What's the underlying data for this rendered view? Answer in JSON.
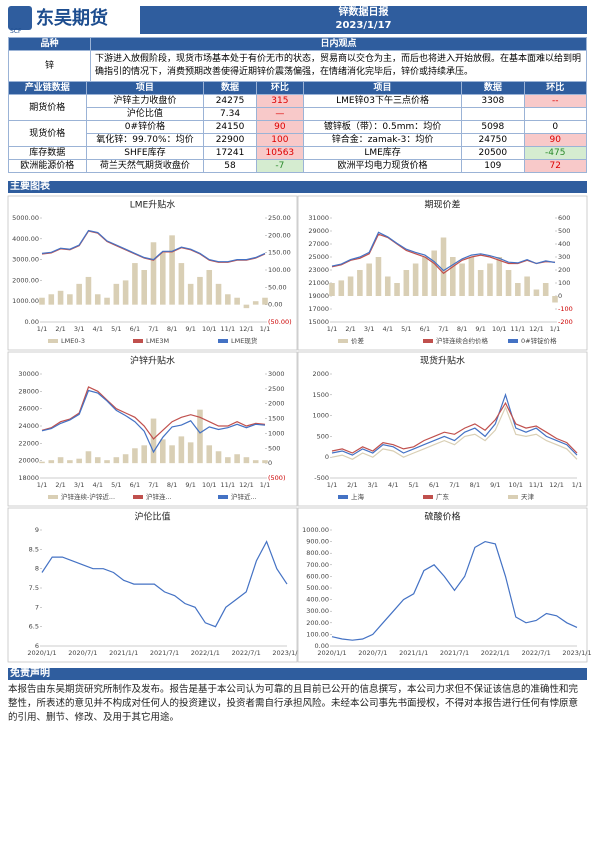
{
  "header": {
    "logo": "东吴期货",
    "logo_sub": "SCF",
    "title": "锌数据日报",
    "date": "2023/1/17"
  },
  "view": {
    "headers": [
      "品种",
      "日内观点"
    ],
    "variety": "锌",
    "text": "下游进入放假阶段，现货市场基本处于有价无市的状态，贸易商以交仓为主，而后也将进入开始放假。在基本面难以给到明确指引的情况下，消费预期改善使得近期锌价震荡偏强，在情绪消化完毕后，锌价或持续承压。"
  },
  "table": {
    "headers": [
      "产业链数据",
      "项目",
      "数据",
      "环比",
      "项目",
      "数据",
      "环比"
    ],
    "groups": [
      {
        "category": "期货价格",
        "rows": [
          [
            "沪锌主力收盘价",
            24275,
            {
              "value": 315,
              "tone": "up"
            },
            "LME锌03下午三点价格",
            3308,
            {
              "value": "--",
              "tone": "up"
            }
          ],
          [
            "沪伦比值",
            7.34,
            {
              "value": "—",
              "tone": "up"
            }
          ]
        ]
      },
      {
        "category": "现货价格",
        "rows": [
          [
            "0#锌价格",
            24150,
            {
              "value": 90,
              "tone": "up"
            },
            "镀锌板（带）：0.5mm：均价",
            5098,
            {
              "value": 0
            }
          ],
          [
            "氧化锌：99.70%：均价",
            22900,
            {
              "value": 100,
              "tone": "up"
            },
            "锌合金：zamak-3：均价",
            24750,
            {
              "value": 90,
              "tone": "up"
            }
          ]
        ]
      },
      {
        "category": "库存数据",
        "rows": [
          [
            "SHFE库存",
            17241,
            {
              "value": 10563,
              "tone": "up"
            },
            "LME库存",
            20500,
            {
              "value": -475,
              "tone": "down"
            }
          ]
        ]
      },
      {
        "category": "欧洲能源价格",
        "rows": [
          [
            "荷兰天然气期货收盘价",
            58,
            {
              "value": -7,
              "tone": "down"
            },
            "欧洲平均电力现货价格",
            109,
            {
              "value": 72,
              "tone": "up"
            }
          ]
        ]
      }
    ]
  },
  "charts_heading": "主要图表",
  "charts": [
    {
      "title": "LME升贴水",
      "categories": [
        "1/1",
        null,
        "2/1",
        null,
        "3/1",
        null,
        "4/1",
        null,
        "5/1",
        null,
        "6/1",
        null,
        "7/1",
        null,
        "8/1",
        null,
        "9/1",
        null,
        "10/1",
        null,
        "11/1",
        null,
        "12/1",
        null,
        "1/1"
      ],
      "ylim": [
        0,
        5000
      ],
      "yticks": [
        {
          "value": 0,
          "label": "0.00"
        },
        {
          "value": 1000,
          "label": "1000.00"
        },
        {
          "value": 2000,
          "label": "2000.00"
        },
        {
          "value": 3000,
          "label": "3000.00"
        },
        {
          "value": 4000,
          "label": "4000.00"
        },
        {
          "value": 5000,
          "label": "5000.00"
        }
      ],
      "y2lim": [
        -50,
        250
      ],
      "y2ticks": [
        {
          "value": -50,
          "label": "(50.00)"
        },
        {
          "value": 0,
          "label": "0.00"
        },
        {
          "value": 50,
          "label": "50.00"
        },
        {
          "value": 100,
          "label": "100.00"
        },
        {
          "value": 150,
          "label": "150.00"
        },
        {
          "value": 200,
          "label": "200.00"
        },
        {
          "value": 250,
          "label": "250.00"
        }
      ],
      "series": [
        {
          "name": "LME0-3",
          "type": "bar",
          "axis": "y2",
          "color": "#d9cfb5",
          "values": [
            20,
            30,
            40,
            30,
            60,
            80,
            30,
            20,
            60,
            70,
            120,
            100,
            180,
            150,
            200,
            120,
            60,
            80,
            100,
            60,
            30,
            20,
            -10,
            10,
            20
          ]
        },
        {
          "name": "LME3M",
          "type": "line",
          "color": "#c0504d",
          "values": [
            3270,
            3320,
            3520,
            3470,
            3670,
            4370,
            4270,
            3870,
            3670,
            3470,
            3270,
            3070,
            2970,
            3370,
            3370,
            3570,
            3470,
            3270,
            2970,
            2870,
            2870,
            2970,
            2970,
            3070,
            3270
          ]
        },
        {
          "name": "LME现货",
          "type": "line",
          "color": "#4472c4",
          "values": [
            3300,
            3350,
            3550,
            3500,
            3700,
            4400,
            4300,
            3900,
            3700,
            3500,
            3300,
            3100,
            3000,
            3400,
            3400,
            3600,
            3500,
            3300,
            3000,
            2900,
            2900,
            3000,
            3000,
            3100,
            3300
          ]
        }
      ]
    },
    {
      "title": "期现价差",
      "categories": [
        "1/1",
        null,
        "2/1",
        null,
        "3/1",
        null,
        "4/1",
        null,
        "5/1",
        null,
        "6/1",
        null,
        "7/1",
        null,
        "8/1",
        null,
        "9/1",
        null,
        "10/1",
        null,
        "11/1",
        null,
        "12/1",
        null,
        "1/1"
      ],
      "ylim": [
        15000,
        31000
      ],
      "yticks": [
        15000,
        17000,
        19000,
        21000,
        23000,
        25000,
        27000,
        29000,
        31000
      ],
      "y2lim": [
        -200,
        600
      ],
      "y2ticks": [
        -200,
        -100,
        0,
        100,
        200,
        300,
        400,
        500,
        600
      ],
      "series": [
        {
          "name": "价差",
          "type": "bar",
          "axis": "y2",
          "color": "#d9cfb5",
          "values": [
            100,
            120,
            150,
            200,
            250,
            300,
            150,
            100,
            200,
            250,
            300,
            350,
            450,
            300,
            250,
            300,
            200,
            250,
            300,
            200,
            100,
            150,
            50,
            100,
            -50
          ]
        },
        {
          "name": "沪锌连续合约价格",
          "type": "line",
          "color": "#c0504d",
          "values": [
            23500,
            23800,
            24500,
            24800,
            25500,
            28500,
            28000,
            27000,
            26000,
            25500,
            25000,
            24000,
            22500,
            23500,
            24500,
            25000,
            25300,
            25000,
            24500,
            24000,
            24000,
            24500,
            24000,
            24300,
            24200
          ]
        },
        {
          "name": "0#锌锭价格",
          "type": "line",
          "color": "#4472c4",
          "values": [
            23600,
            23900,
            24600,
            25000,
            25700,
            28800,
            28100,
            27100,
            26200,
            25700,
            25300,
            24300,
            22900,
            23800,
            24700,
            25300,
            25500,
            25200,
            24800,
            24200,
            24100,
            24600,
            24000,
            24400,
            24150
          ]
        }
      ]
    },
    {
      "title": "沪锌升贴水",
      "categories": [
        "1/1",
        null,
        "2/1",
        null,
        "3/1",
        null,
        "4/1",
        null,
        "5/1",
        null,
        "6/1",
        null,
        "7/1",
        null,
        "8/1",
        null,
        "9/1",
        null,
        "10/1",
        null,
        "11/1",
        null,
        "12/1",
        null,
        "1/1"
      ],
      "ylim": [
        18000,
        30000
      ],
      "yticks": [
        18000,
        20000,
        22000,
        24000,
        26000,
        28000,
        30000
      ],
      "y2lim": [
        -500,
        3000
      ],
      "y2ticks": [
        {
          "value": -500,
          "label": "(500)"
        },
        0,
        500,
        1000,
        1500,
        2000,
        2500,
        3000
      ],
      "series": [
        {
          "name": "沪锌连续-沪锌近...",
          "type": "bar",
          "axis": "y2",
          "color": "#d9cfb5",
          "values": [
            50,
            100,
            200,
            100,
            150,
            400,
            200,
            100,
            200,
            300,
            500,
            600,
            1500,
            800,
            600,
            900,
            700,
            1800,
            600,
            400,
            200,
            300,
            200,
            100,
            100
          ]
        },
        {
          "name": "沪锌连...",
          "type": "line",
          "color": "#c0504d",
          "values": [
            23500,
            23800,
            24500,
            24800,
            25500,
            28500,
            28000,
            27000,
            26000,
            25500,
            25000,
            24000,
            22500,
            23500,
            24500,
            25000,
            25300,
            25000,
            24500,
            24000,
            24000,
            24500,
            24000,
            24300,
            24200
          ]
        },
        {
          "name": "沪锌近...",
          "type": "line",
          "color": "#4472c4",
          "values": [
            23450,
            23700,
            24300,
            24700,
            25350,
            28100,
            27800,
            26900,
            25800,
            25200,
            24500,
            23400,
            21000,
            22700,
            23900,
            24100,
            24600,
            23200,
            23900,
            23600,
            23800,
            24200,
            23800,
            24200,
            24100
          ]
        }
      ]
    },
    {
      "title": "现货升贴水",
      "categories": [
        "1/1",
        null,
        "2/1",
        null,
        "3/1",
        null,
        "4/1",
        null,
        "5/1",
        null,
        "6/1",
        null,
        "7/1",
        null,
        "8/1",
        null,
        "9/1",
        null,
        "10/1",
        null,
        "11/1",
        null,
        "12/1",
        null,
        "1/1"
      ],
      "ylim": [
        -500,
        2000
      ],
      "yticks": [
        -500,
        0,
        500,
        1000,
        1500,
        2000
      ],
      "series": [
        {
          "name": "上海",
          "type": "line",
          "color": "#4472c4",
          "values": [
            100,
            150,
            50,
            200,
            100,
            300,
            250,
            100,
            200,
            300,
            400,
            500,
            400,
            600,
            700,
            500,
            800,
            1500,
            700,
            600,
            700,
            500,
            400,
            300,
            50
          ]
        },
        {
          "name": "广东",
          "type": "line",
          "color": "#c0504d",
          "values": [
            150,
            200,
            100,
            250,
            150,
            350,
            300,
            200,
            250,
            400,
            500,
            600,
            550,
            700,
            800,
            650,
            900,
            1300,
            800,
            700,
            750,
            600,
            450,
            350,
            100
          ]
        },
        {
          "name": "天津",
          "type": "line",
          "color": "#d9cfb5",
          "values": [
            0,
            50,
            -50,
            100,
            0,
            200,
            150,
            0,
            100,
            200,
            300,
            400,
            300,
            500,
            550,
            400,
            650,
            1200,
            550,
            500,
            550,
            400,
            300,
            200,
            -50
          ]
        }
      ]
    },
    {
      "title": "沪伦比值",
      "categories": [
        "2020/1/1",
        null,
        null,
        null,
        "2020/7/1",
        null,
        null,
        null,
        "2021/1/1",
        null,
        null,
        null,
        "2021/7/1",
        null,
        null,
        null,
        "2022/1/1",
        null,
        null,
        null,
        "2022/7/1",
        null,
        null,
        null,
        "2023/1/1"
      ],
      "ylim": [
        6,
        9
      ],
      "yticks": [
        6,
        6.5,
        7,
        7.5,
        8,
        8.5,
        9
      ],
      "series": [
        {
          "name": "沪伦比值",
          "type": "line",
          "color": "#4472c4",
          "values": [
            7.9,
            8.3,
            8.3,
            8.2,
            8.1,
            8.0,
            8.0,
            7.9,
            7.7,
            7.6,
            7.6,
            7.6,
            7.4,
            7.3,
            7.1,
            7.0,
            6.6,
            6.5,
            7.0,
            7.2,
            7.4,
            8.2,
            8.7,
            8.0,
            7.6
          ]
        }
      ]
    },
    {
      "title": "硫酸价格",
      "categories": [
        "2020/1/1",
        null,
        null,
        null,
        "2020/7/1",
        null,
        null,
        null,
        "2021/1/1",
        null,
        null,
        null,
        "2021/7/1",
        null,
        null,
        null,
        "2022/1/1",
        null,
        null,
        null,
        "2022/7/1",
        null,
        null,
        null,
        "2023/1/1"
      ],
      "ylim": [
        0,
        1000
      ],
      "yticks": [
        {
          "value": 0,
          "label": "0.00"
        },
        {
          "value": 100,
          "label": "100.00"
        },
        {
          "value": 200,
          "label": "200.00"
        },
        {
          "value": 300,
          "label": "300.00"
        },
        {
          "value": 400,
          "label": "400.00"
        },
        {
          "value": 500,
          "label": "500.00"
        },
        {
          "value": 600,
          "label": "600.00"
        },
        {
          "value": 700,
          "label": "700.00"
        },
        {
          "value": 800,
          "label": "800.00"
        },
        {
          "value": 900,
          "label": "900.00"
        },
        {
          "value": 1000,
          "label": "1000.00"
        }
      ],
      "series": [
        {
          "name": "硫酸价格",
          "type": "line",
          "color": "#4472c4",
          "values": [
            80,
            60,
            50,
            60,
            100,
            200,
            300,
            400,
            450,
            650,
            700,
            600,
            480,
            600,
            850,
            900,
            880,
            600,
            250,
            200,
            220,
            280,
            260,
            200,
            160
          ]
        }
      ]
    }
  ],
  "disclaimer": {
    "title": "免责声明",
    "text": "本报告由东吴期货研究所制作及发布。报告是基于本公司认为可靠的且目前已公开的信息撰写，本公司力求但不保证该信息的准确性和完整性，所表述的意见并不构成对任何人的投资建议，投资者需自行承担风险。未经本公司事先书面授权，不得对本报告进行任何有悖原意的引用、删节、修改、及用于其它用途。"
  }
}
